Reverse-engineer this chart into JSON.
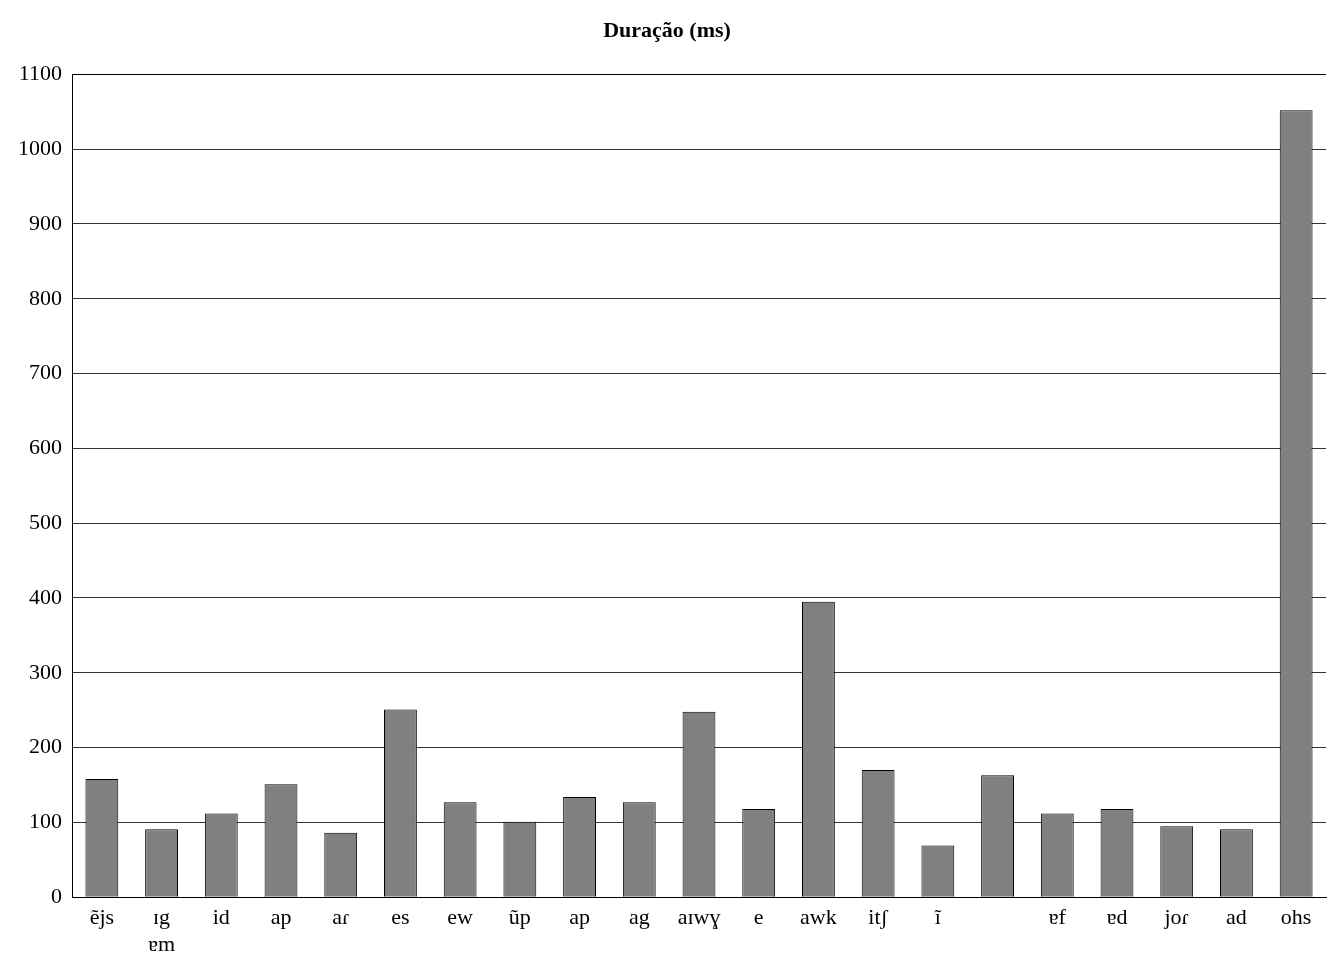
{
  "chart_data": {
    "type": "bar",
    "title": "Duração (ms)",
    "categories": [
      "ẽjs",
      "ɪg\nɐm",
      "id",
      "ap",
      "aɾ",
      "es",
      "ew",
      "ũp",
      "ap",
      "ag",
      "aɪwɣ",
      "e",
      "awk",
      "itʃ",
      "ĩ",
      null,
      "ɐf",
      "ɐd",
      "joɾ",
      "ad",
      "ohs"
    ],
    "values": [
      158,
      91,
      112,
      151,
      86,
      251,
      127,
      101,
      134,
      127,
      248,
      118,
      395,
      170,
      69,
      163,
      112,
      118,
      95,
      91,
      1052
    ],
    "color": "#808080",
    "ylim": [
      0,
      1100
    ],
    "yticks": [
      0,
      100,
      200,
      300,
      400,
      500,
      600,
      700,
      800,
      900,
      1000,
      1100
    ],
    "grid": "y",
    "legend": false
  }
}
